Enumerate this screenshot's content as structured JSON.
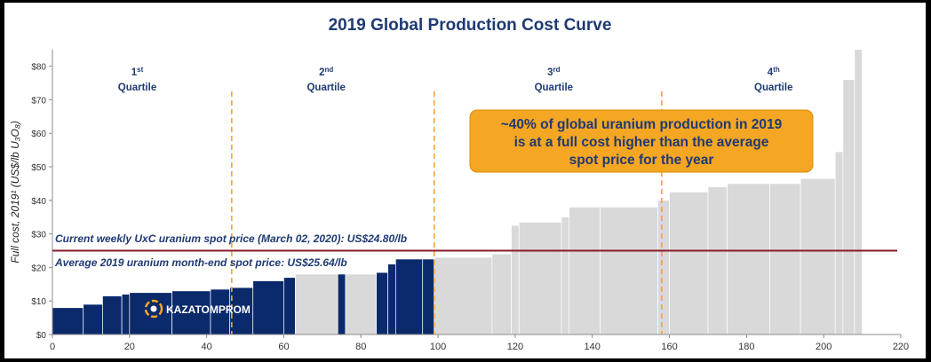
{
  "chart_data": {
    "type": "bar",
    "title": "2019 Global Production Cost Curve",
    "xlabel": "",
    "ylabel": "Full cost, 2019¹ (US$/lb U₃O₈)",
    "xlim": [
      0,
      220
    ],
    "ylim": [
      0,
      85
    ],
    "x_ticks": [
      0,
      20,
      40,
      60,
      80,
      100,
      120,
      140,
      160,
      180,
      200,
      220
    ],
    "y_ticks": [
      {
        "value": 0,
        "label": "$0"
      },
      {
        "value": 10,
        "label": "$10"
      },
      {
        "value": 20,
        "label": "$20"
      },
      {
        "value": 30,
        "label": "$30"
      },
      {
        "value": 40,
        "label": "$40"
      },
      {
        "value": 50,
        "label": "$50"
      },
      {
        "value": 60,
        "label": "$60"
      },
      {
        "value": 70,
        "label": "$70"
      },
      {
        "value": 80,
        "label": "$80"
      }
    ],
    "grid": false,
    "colors": {
      "highlight": "#0b2a6b",
      "other": "#d9d9d9",
      "spot_line": "#8b1a2b",
      "quartile_line": "#f5a623",
      "callout_bg": "#f5a623",
      "text": "#1f3a73"
    },
    "bars": [
      {
        "start": 0,
        "end": 8,
        "value": 8,
        "highlight": true
      },
      {
        "start": 8,
        "end": 13,
        "value": 9,
        "highlight": true
      },
      {
        "start": 13,
        "end": 18,
        "value": 11.5,
        "highlight": true
      },
      {
        "start": 18,
        "end": 20,
        "value": 12,
        "highlight": true
      },
      {
        "start": 20,
        "end": 31,
        "value": 12.5,
        "highlight": true
      },
      {
        "start": 31,
        "end": 41,
        "value": 13,
        "highlight": true
      },
      {
        "start": 41,
        "end": 46,
        "value": 13.5,
        "highlight": true
      },
      {
        "start": 46,
        "end": 52,
        "value": 14,
        "highlight": true
      },
      {
        "start": 52,
        "end": 60,
        "value": 16,
        "highlight": true
      },
      {
        "start": 60,
        "end": 63,
        "value": 17,
        "highlight": true
      },
      {
        "start": 63,
        "end": 74,
        "value": 18,
        "highlight": false
      },
      {
        "start": 74,
        "end": 76,
        "value": 18,
        "highlight": true
      },
      {
        "start": 76,
        "end": 84,
        "value": 18,
        "highlight": false
      },
      {
        "start": 84,
        "end": 87,
        "value": 18.5,
        "highlight": true
      },
      {
        "start": 87,
        "end": 89,
        "value": 21,
        "highlight": true
      },
      {
        "start": 89,
        "end": 96,
        "value": 22.5,
        "highlight": true
      },
      {
        "start": 96,
        "end": 99,
        "value": 22.5,
        "highlight": true
      },
      {
        "start": 99,
        "end": 114,
        "value": 23,
        "highlight": false
      },
      {
        "start": 114,
        "end": 119,
        "value": 24,
        "highlight": false
      },
      {
        "start": 119,
        "end": 121,
        "value": 32.5,
        "highlight": false
      },
      {
        "start": 121,
        "end": 132,
        "value": 33.5,
        "highlight": false
      },
      {
        "start": 132,
        "end": 134,
        "value": 35,
        "highlight": false
      },
      {
        "start": 134,
        "end": 142,
        "value": 38,
        "highlight": false
      },
      {
        "start": 142,
        "end": 157,
        "value": 38,
        "highlight": false
      },
      {
        "start": 157,
        "end": 160,
        "value": 40,
        "highlight": false
      },
      {
        "start": 160,
        "end": 170,
        "value": 42.5,
        "highlight": false
      },
      {
        "start": 170,
        "end": 175,
        "value": 44,
        "highlight": false
      },
      {
        "start": 175,
        "end": 186,
        "value": 45,
        "highlight": false
      },
      {
        "start": 186,
        "end": 194,
        "value": 45,
        "highlight": false
      },
      {
        "start": 194,
        "end": 203,
        "value": 46.5,
        "highlight": false
      },
      {
        "start": 203,
        "end": 205,
        "value": 54.5,
        "highlight": false
      },
      {
        "start": 205,
        "end": 208,
        "value": 76,
        "highlight": false
      },
      {
        "start": 208,
        "end": 210,
        "value": 85,
        "highlight": false
      }
    ],
    "quartile_boundaries": [
      46.5,
      99,
      158
    ],
    "quartiles": [
      {
        "num": "1",
        "sup": "st",
        "label": "Quartile",
        "x": 22
      },
      {
        "num": "2",
        "sup": "nd",
        "label": "Quartile",
        "x": 71
      },
      {
        "num": "3",
        "sup": "rd",
        "label": "Quartile",
        "x": 130
      },
      {
        "num": "4",
        "sup": "th",
        "label": "Quartile",
        "x": 187
      }
    ],
    "spot_line": {
      "value": 25
    },
    "annotations": {
      "current": "Current weekly UxC uranium spot price (March 02, 2020): US$24.80/lb",
      "average": "Average 2019 uranium month-end spot price: US$25.64/lb"
    },
    "callout": {
      "lines": [
        "~40% of global uranium production in 2019",
        "is at a full cost higher than the average",
        "spot price for the year"
      ]
    },
    "logo": {
      "text": "KAZATOMPROM"
    }
  }
}
